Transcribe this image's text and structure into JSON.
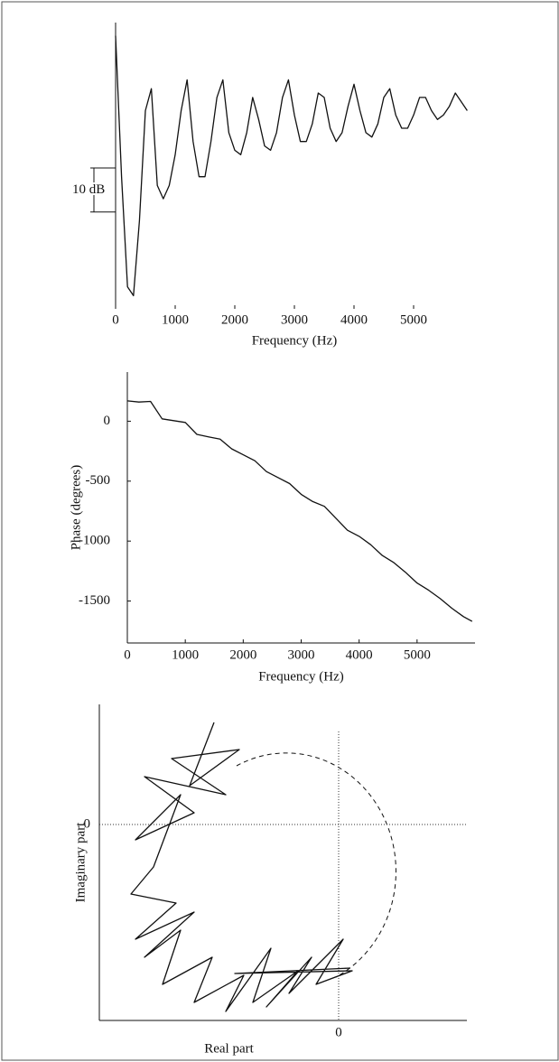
{
  "chart_data": [
    {
      "type": "line",
      "xlabel": "Frequency (Hz)",
      "color": "#111111",
      "x": [
        0,
        100,
        200,
        300,
        400,
        500,
        600,
        700,
        800,
        900,
        1000,
        1100,
        1200,
        1300,
        1400,
        1500,
        1600,
        1700,
        1800,
        1900,
        2000,
        2100,
        2200,
        2300,
        2400,
        2500,
        2600,
        2700,
        2800,
        2900,
        3000,
        3100,
        3200,
        3300,
        3400,
        3500,
        3600,
        3700,
        3800,
        3900,
        4000,
        4100,
        4200,
        4300,
        4400,
        4500,
        4600,
        4700,
        4800,
        4900,
        5000,
        5100,
        5200,
        5300,
        5400,
        5500,
        5600,
        5700,
        5800,
        5900
      ],
      "values": [
        62,
        30,
        5,
        3,
        20,
        45,
        50,
        28,
        25,
        28,
        35,
        45,
        52,
        38,
        30,
        30,
        38,
        48,
        52,
        40,
        36,
        35,
        40,
        48,
        43,
        37,
        36,
        40,
        48,
        52,
        44,
        38,
        38,
        42,
        49,
        48,
        41,
        38,
        40,
        46,
        51,
        45,
        40,
        39,
        42,
        48,
        50,
        44,
        41,
        41,
        44,
        48,
        48,
        45,
        43,
        44,
        46,
        49,
        47,
        45
      ],
      "xlim": [
        0,
        6000
      ],
      "ylim": [
        0,
        65
      ],
      "xticks": [
        0,
        1000,
        2000,
        3000,
        4000,
        5000
      ],
      "scale_bar": {
        "value": 10,
        "label": "10 dB"
      }
    },
    {
      "type": "line",
      "xlabel": "Frequency (Hz)",
      "ylabel": "Phase (degrees)",
      "color": "#111111",
      "x": [
        0,
        200,
        400,
        600,
        800,
        1000,
        1200,
        1400,
        1600,
        1800,
        2000,
        2200,
        2400,
        2600,
        2800,
        3000,
        3200,
        3400,
        3600,
        3800,
        4000,
        4200,
        4400,
        4600,
        4800,
        5000,
        5200,
        5400,
        5600,
        5800,
        5950
      ],
      "values": [
        170,
        160,
        165,
        20,
        5,
        -10,
        -110,
        -130,
        -150,
        -230,
        -280,
        -330,
        -420,
        -470,
        -520,
        -610,
        -670,
        -710,
        -810,
        -910,
        -960,
        -1030,
        -1120,
        -1180,
        -1260,
        -1350,
        -1410,
        -1480,
        -1560,
        -1630,
        -1670
      ],
      "xlim": [
        0,
        6000
      ],
      "ylim": [
        -1850,
        410
      ],
      "xticks": [
        0,
        1000,
        2000,
        3000,
        4000,
        5000
      ],
      "yticks": [
        0,
        -500,
        -1000,
        -1500
      ]
    },
    {
      "type": "line",
      "xlabel": "Real part",
      "ylabel": "Imaginary part",
      "color": "#111111",
      "grid": true,
      "x": [
        -1.38,
        -1.65,
        -1.1,
        -1.85,
        -1.25,
        -2.15,
        -1.6,
        -2.25,
        -1.75,
        -2.05,
        -2.3,
        -1.8,
        -2.25,
        -1.6,
        -2.15,
        -1.75,
        -1.95,
        -1.4,
        -1.6,
        -1.05,
        -1.25,
        -0.75,
        -0.95,
        -0.45,
        -0.8,
        -0.3,
        -0.55,
        0.05,
        -0.25,
        0.15,
        -1.15,
        0.13
      ],
      "values": [
        1.13,
        0.43,
        0.83,
        0.73,
        0.33,
        0.53,
        0.13,
        -0.17,
        0.33,
        -0.47,
        -0.77,
        -0.87,
        -1.27,
        -0.97,
        -1.47,
        -1.17,
        -1.77,
        -1.47,
        -1.97,
        -1.67,
        -2.07,
        -1.37,
        -1.97,
        -1.62,
        -2.02,
        -1.47,
        -1.87,
        -1.27,
        -1.77,
        -1.62,
        -1.65,
        -1.59
      ],
      "xlim": [
        -2.65,
        1.42
      ],
      "ylim": [
        -2.17,
        1.33
      ],
      "xticks": [
        0
      ],
      "yticks": [
        0
      ]
    }
  ]
}
